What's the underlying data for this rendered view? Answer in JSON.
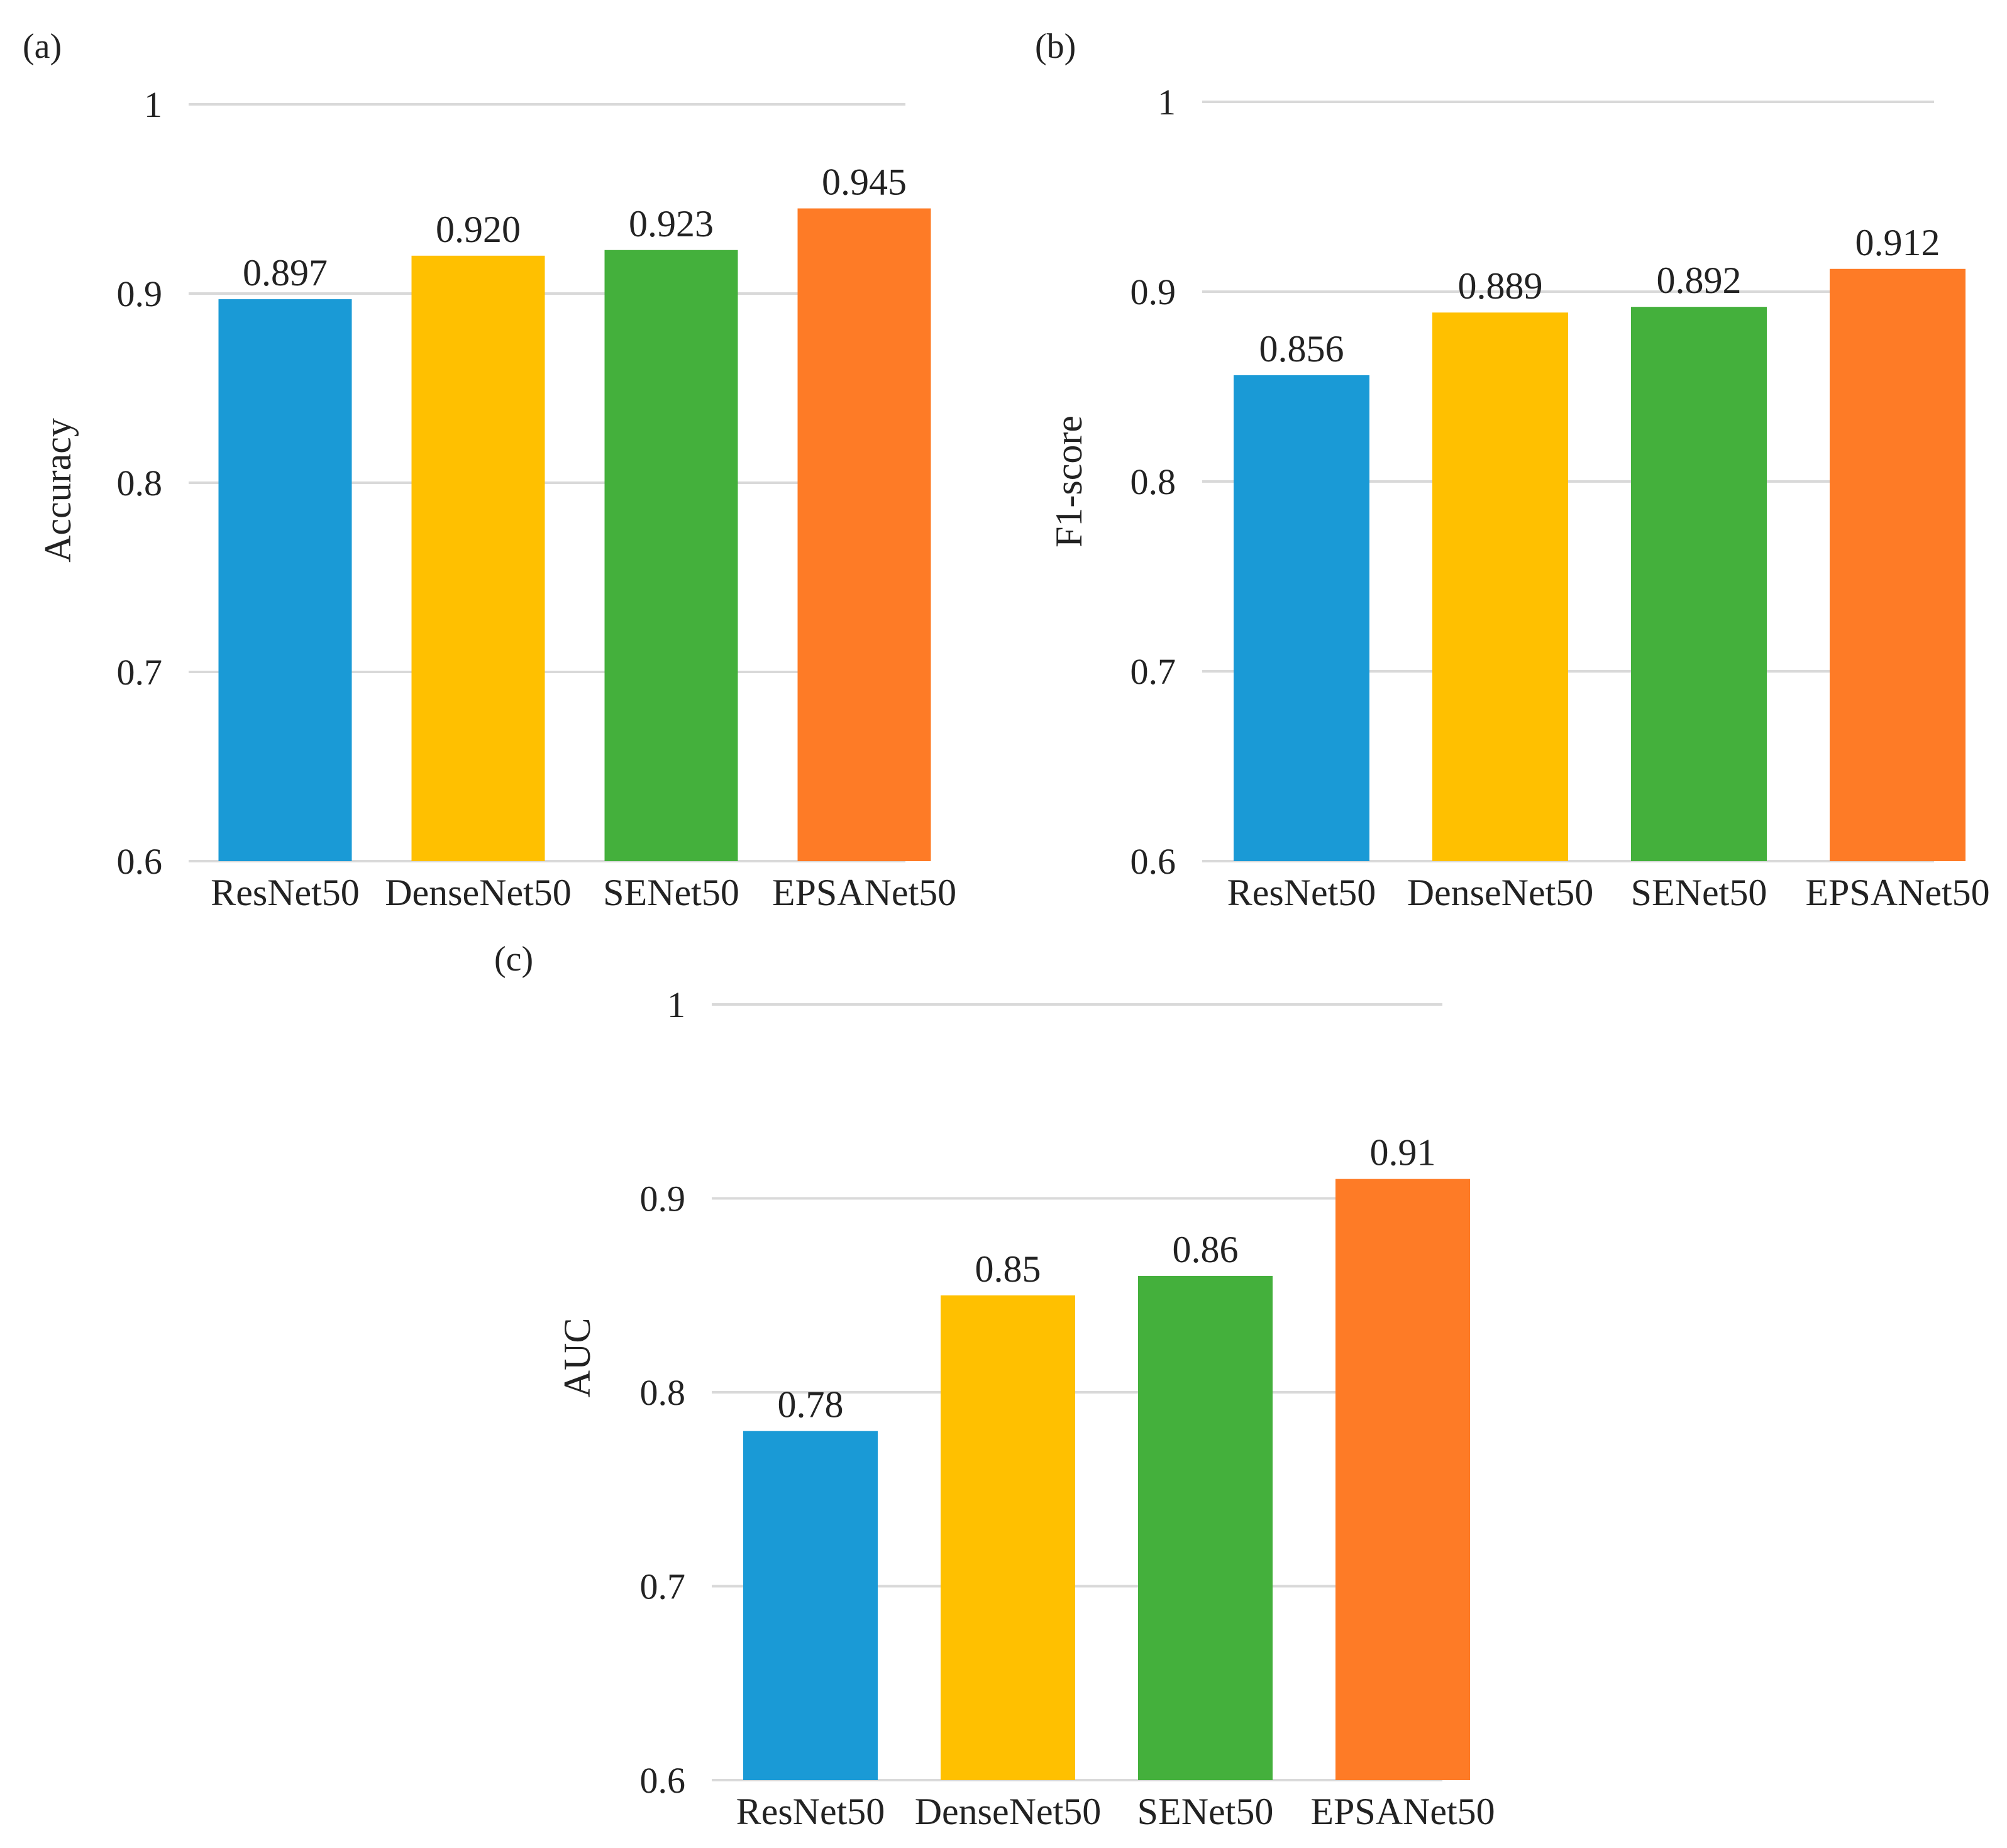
{
  "colors": {
    "ResNet50": "#1a9ad6",
    "DenseNet50": "#ffc000",
    "SENet50": "#44b03c",
    "EPSANet50": "#fe7b26",
    "grid": "#d9d9d9"
  },
  "chart_data": [
    {
      "type": "bar",
      "panel": "(a)",
      "ylabel": "Accuracy",
      "ylim": [
        0.6,
        1
      ],
      "yticks": [
        "0.6",
        "0.7",
        "0.8",
        "0.9",
        "1"
      ],
      "categories": [
        "ResNet50",
        "DenseNet50",
        "SENet50",
        "EPSANet50"
      ],
      "values": [
        0.897,
        0.92,
        0.923,
        0.945
      ],
      "labels": [
        "0.897",
        "0.920",
        "0.923",
        "0.945"
      ]
    },
    {
      "type": "bar",
      "panel": "(b)",
      "ylabel": "F1-score",
      "ylim": [
        0.6,
        1
      ],
      "yticks": [
        "0.6",
        "0.7",
        "0.8",
        "0.9",
        "1"
      ],
      "categories": [
        "ResNet50",
        "DenseNet50",
        "SENet50",
        "EPSANet50"
      ],
      "values": [
        0.856,
        0.889,
        0.892,
        0.912
      ],
      "labels": [
        "0.856",
        "0.889",
        "0.892",
        "0.912"
      ]
    },
    {
      "type": "bar",
      "panel": "(c)",
      "ylabel": "AUC",
      "ylim": [
        0.6,
        1
      ],
      "yticks": [
        "0.6",
        "0.7",
        "0.8",
        "0.9",
        "1"
      ],
      "categories": [
        "ResNet50",
        "DenseNet50",
        "SENet50",
        "EPSANet50"
      ],
      "values": [
        0.78,
        0.85,
        0.86,
        0.91
      ],
      "labels": [
        "0.78",
        "0.85",
        "0.86",
        "0.91"
      ]
    }
  ]
}
